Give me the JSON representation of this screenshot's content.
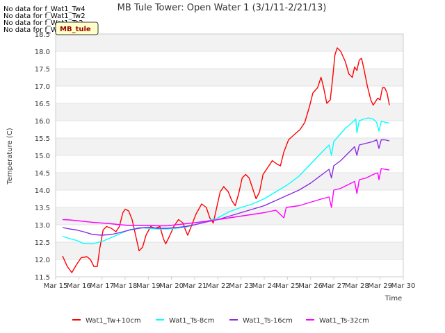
{
  "nodata_messages": [
    "No data for f_Wat1_Tw4",
    "No data for f_Wat1_Tw2",
    "No data for f_Wat1_Ts2",
    "No data for f_Wat1_Tw8"
  ],
  "badge_label": "MB_tule",
  "chart_data": {
    "type": "line",
    "title": "MB Tule Tower: Open Water 1 (3/1/11-2/21/13)",
    "xlabel": "Time",
    "ylabel": "Temperature (C)",
    "xlim": [
      15,
      30
    ],
    "ylim": [
      11.5,
      18.5
    ],
    "x_ticks": [
      15,
      16,
      17,
      18,
      19,
      20,
      21,
      22,
      23,
      24,
      25,
      26,
      27,
      28,
      29,
      30
    ],
    "x_tick_labels": [
      "Mar 15",
      "Mar 16",
      "Mar 17",
      "Mar 18",
      "Mar 19",
      "Mar 20",
      "Mar 21",
      "Mar 22",
      "Mar 23",
      "Mar 24",
      "Mar 25",
      "Mar 26",
      "Mar 27",
      "Mar 28",
      "Mar 29",
      "Mar 30"
    ],
    "y_ticks": [
      11.5,
      12.0,
      12.5,
      13.0,
      13.5,
      14.0,
      14.5,
      15.0,
      15.5,
      16.0,
      16.5,
      17.0,
      17.5,
      18.0,
      18.5
    ],
    "y_tick_labels": [
      "11.5",
      "12.0",
      "12.5",
      "13.0",
      "13.5",
      "14.0",
      "14.5",
      "15.0",
      "15.5",
      "16.0",
      "16.5",
      "17.0",
      "17.5",
      "18.0",
      "18.5"
    ],
    "colors": {
      "band": "#f2f2f2",
      "grid": "#dddddd",
      "axis": "#cccccc",
      "text": "#333333",
      "badge_bg": "#ffffcc",
      "badge_text": "#990000"
    },
    "series": [
      {
        "name": "Wat1_Tw+10cm",
        "color": "#ff0000",
        "points": [
          [
            15.3,
            12.1
          ],
          [
            15.5,
            11.8
          ],
          [
            15.7,
            11.62
          ],
          [
            15.9,
            11.85
          ],
          [
            16.1,
            12.05
          ],
          [
            16.35,
            12.08
          ],
          [
            16.5,
            12.0
          ],
          [
            16.65,
            11.8
          ],
          [
            16.8,
            11.8
          ],
          [
            16.9,
            12.3
          ],
          [
            17.05,
            12.85
          ],
          [
            17.2,
            12.95
          ],
          [
            17.4,
            12.9
          ],
          [
            17.6,
            12.8
          ],
          [
            17.75,
            12.95
          ],
          [
            17.9,
            13.35
          ],
          [
            18.0,
            13.45
          ],
          [
            18.15,
            13.4
          ],
          [
            18.3,
            13.15
          ],
          [
            18.45,
            12.7
          ],
          [
            18.6,
            12.25
          ],
          [
            18.75,
            12.35
          ],
          [
            18.9,
            12.7
          ],
          [
            19.1,
            12.95
          ],
          [
            19.3,
            12.9
          ],
          [
            19.5,
            12.95
          ],
          [
            19.65,
            12.6
          ],
          [
            19.75,
            12.45
          ],
          [
            19.9,
            12.65
          ],
          [
            20.1,
            12.95
          ],
          [
            20.3,
            13.15
          ],
          [
            20.5,
            13.05
          ],
          [
            20.6,
            12.85
          ],
          [
            20.7,
            12.7
          ],
          [
            20.85,
            12.95
          ],
          [
            21.05,
            13.3
          ],
          [
            21.3,
            13.6
          ],
          [
            21.5,
            13.5
          ],
          [
            21.65,
            13.2
          ],
          [
            21.8,
            13.05
          ],
          [
            21.95,
            13.5
          ],
          [
            22.1,
            13.95
          ],
          [
            22.25,
            14.1
          ],
          [
            22.45,
            13.95
          ],
          [
            22.6,
            13.7
          ],
          [
            22.75,
            13.55
          ],
          [
            22.9,
            13.9
          ],
          [
            23.05,
            14.35
          ],
          [
            23.2,
            14.45
          ],
          [
            23.35,
            14.35
          ],
          [
            23.5,
            14.05
          ],
          [
            23.65,
            13.75
          ],
          [
            23.8,
            13.95
          ],
          [
            23.95,
            14.45
          ],
          [
            24.15,
            14.65
          ],
          [
            24.35,
            14.85
          ],
          [
            24.55,
            14.75
          ],
          [
            24.7,
            14.7
          ],
          [
            24.85,
            15.1
          ],
          [
            25.05,
            15.45
          ],
          [
            25.3,
            15.6
          ],
          [
            25.55,
            15.75
          ],
          [
            25.75,
            15.95
          ],
          [
            25.95,
            16.4
          ],
          [
            26.1,
            16.8
          ],
          [
            26.3,
            16.95
          ],
          [
            26.45,
            17.25
          ],
          [
            26.55,
            17.0
          ],
          [
            26.7,
            16.5
          ],
          [
            26.85,
            16.6
          ],
          [
            26.95,
            17.2
          ],
          [
            27.05,
            17.9
          ],
          [
            27.15,
            18.1
          ],
          [
            27.3,
            18.0
          ],
          [
            27.5,
            17.7
          ],
          [
            27.65,
            17.35
          ],
          [
            27.8,
            17.25
          ],
          [
            27.9,
            17.55
          ],
          [
            28.0,
            17.45
          ],
          [
            28.1,
            17.75
          ],
          [
            28.2,
            17.8
          ],
          [
            28.3,
            17.5
          ],
          [
            28.45,
            17.0
          ],
          [
            28.6,
            16.6
          ],
          [
            28.7,
            16.45
          ],
          [
            28.8,
            16.55
          ],
          [
            28.9,
            16.65
          ],
          [
            29.0,
            16.6
          ],
          [
            29.1,
            16.95
          ],
          [
            29.2,
            16.95
          ],
          [
            29.3,
            16.8
          ],
          [
            29.4,
            16.45
          ]
        ]
      },
      {
        "name": "Wat1_Ts-8cm",
        "color": "#00ffff",
        "points": [
          [
            15.3,
            12.67
          ],
          [
            15.6,
            12.6
          ],
          [
            15.9,
            12.55
          ],
          [
            16.2,
            12.46
          ],
          [
            16.6,
            12.45
          ],
          [
            17.0,
            12.52
          ],
          [
            17.4,
            12.63
          ],
          [
            17.8,
            12.75
          ],
          [
            18.2,
            12.86
          ],
          [
            18.6,
            12.92
          ],
          [
            19.0,
            12.9
          ],
          [
            19.4,
            12.88
          ],
          [
            19.8,
            12.88
          ],
          [
            20.2,
            12.9
          ],
          [
            20.6,
            12.93
          ],
          [
            21.0,
            13.0
          ],
          [
            21.5,
            13.1
          ],
          [
            22.0,
            13.2
          ],
          [
            22.5,
            13.38
          ],
          [
            23.0,
            13.5
          ],
          [
            23.5,
            13.6
          ],
          [
            24.0,
            13.75
          ],
          [
            24.5,
            13.95
          ],
          [
            25.0,
            14.15
          ],
          [
            25.5,
            14.4
          ],
          [
            26.0,
            14.75
          ],
          [
            26.5,
            15.1
          ],
          [
            26.8,
            15.3
          ],
          [
            26.9,
            15.0
          ],
          [
            27.0,
            15.4
          ],
          [
            27.2,
            15.55
          ],
          [
            27.5,
            15.78
          ],
          [
            27.8,
            15.95
          ],
          [
            27.95,
            16.05
          ],
          [
            28.0,
            15.65
          ],
          [
            28.1,
            16.0
          ],
          [
            28.3,
            16.05
          ],
          [
            28.5,
            16.08
          ],
          [
            28.7,
            16.05
          ],
          [
            28.85,
            15.95
          ],
          [
            28.95,
            15.7
          ],
          [
            29.05,
            15.98
          ],
          [
            29.2,
            15.96
          ],
          [
            29.4,
            15.93
          ]
        ]
      },
      {
        "name": "Wat1_Ts-16cm",
        "color": "#8a2be2",
        "points": [
          [
            15.3,
            12.92
          ],
          [
            15.6,
            12.88
          ],
          [
            15.9,
            12.85
          ],
          [
            16.2,
            12.8
          ],
          [
            16.6,
            12.72
          ],
          [
            17.0,
            12.7
          ],
          [
            17.4,
            12.72
          ],
          [
            17.8,
            12.78
          ],
          [
            18.2,
            12.85
          ],
          [
            18.6,
            12.9
          ],
          [
            19.0,
            12.93
          ],
          [
            19.4,
            12.9
          ],
          [
            19.8,
            12.9
          ],
          [
            20.2,
            12.92
          ],
          [
            20.6,
            12.95
          ],
          [
            21.0,
            13.0
          ],
          [
            21.5,
            13.08
          ],
          [
            22.0,
            13.15
          ],
          [
            22.5,
            13.25
          ],
          [
            23.0,
            13.35
          ],
          [
            23.5,
            13.45
          ],
          [
            24.0,
            13.55
          ],
          [
            24.5,
            13.7
          ],
          [
            25.0,
            13.85
          ],
          [
            25.5,
            14.0
          ],
          [
            26.0,
            14.2
          ],
          [
            26.5,
            14.45
          ],
          [
            26.8,
            14.6
          ],
          [
            26.9,
            14.35
          ],
          [
            27.0,
            14.7
          ],
          [
            27.3,
            14.85
          ],
          [
            27.6,
            15.05
          ],
          [
            27.9,
            15.25
          ],
          [
            28.0,
            15.0
          ],
          [
            28.1,
            15.3
          ],
          [
            28.4,
            15.35
          ],
          [
            28.7,
            15.4
          ],
          [
            28.85,
            15.45
          ],
          [
            28.95,
            15.2
          ],
          [
            29.05,
            15.45
          ],
          [
            29.2,
            15.45
          ],
          [
            29.4,
            15.42
          ]
        ]
      },
      {
        "name": "Wat1_Ts-32cm",
        "color": "#ff00ff",
        "points": [
          [
            15.3,
            13.15
          ],
          [
            15.6,
            13.14
          ],
          [
            15.9,
            13.12
          ],
          [
            16.2,
            13.1
          ],
          [
            16.6,
            13.07
          ],
          [
            17.0,
            13.05
          ],
          [
            17.4,
            13.03
          ],
          [
            17.8,
            13.0
          ],
          [
            18.2,
            12.98
          ],
          [
            18.6,
            12.98
          ],
          [
            19.0,
            12.98
          ],
          [
            19.4,
            12.97
          ],
          [
            19.8,
            12.97
          ],
          [
            20.2,
            13.0
          ],
          [
            20.6,
            13.03
          ],
          [
            21.0,
            13.06
          ],
          [
            21.5,
            13.1
          ],
          [
            22.0,
            13.15
          ],
          [
            22.5,
            13.2
          ],
          [
            23.0,
            13.25
          ],
          [
            23.5,
            13.3
          ],
          [
            24.0,
            13.35
          ],
          [
            24.5,
            13.42
          ],
          [
            24.85,
            13.2
          ],
          [
            24.95,
            13.5
          ],
          [
            25.5,
            13.55
          ],
          [
            26.0,
            13.65
          ],
          [
            26.5,
            13.75
          ],
          [
            26.8,
            13.8
          ],
          [
            26.9,
            13.5
          ],
          [
            27.0,
            14.0
          ],
          [
            27.3,
            14.05
          ],
          [
            27.6,
            14.15
          ],
          [
            27.9,
            14.25
          ],
          [
            28.0,
            13.9
          ],
          [
            28.1,
            14.3
          ],
          [
            28.4,
            14.35
          ],
          [
            28.7,
            14.45
          ],
          [
            28.9,
            14.5
          ],
          [
            28.95,
            14.3
          ],
          [
            29.05,
            14.62
          ],
          [
            29.2,
            14.6
          ],
          [
            29.4,
            14.58
          ]
        ]
      }
    ]
  }
}
